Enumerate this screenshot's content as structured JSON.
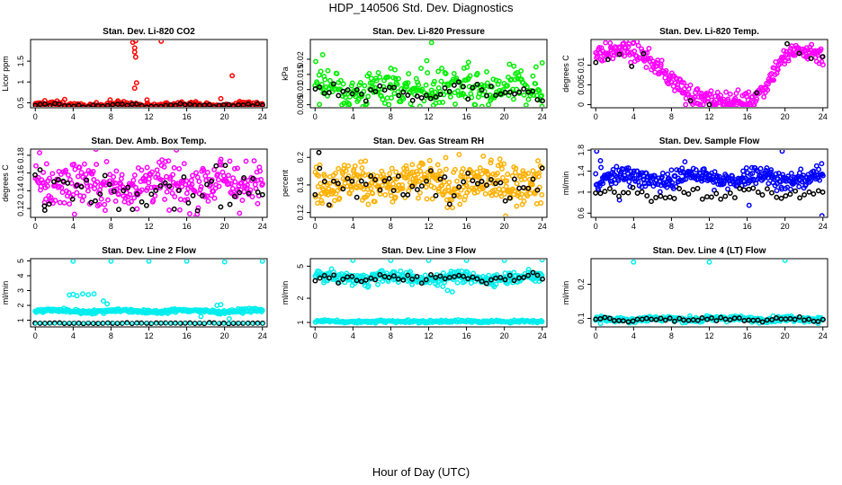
{
  "title": "HDP_140506  Std. Dev. Diagnostics",
  "xlabel": "Hour of Day (UTC)",
  "colors": {
    "black": "#000000",
    "red": "#ff0000",
    "green": "#00ee00",
    "magenta": "#ff00ff",
    "orange": "#ffb000",
    "blue": "#0000ff",
    "cyan": "#00eeee"
  },
  "chart_data": [
    {
      "type": "scatter",
      "title": "Stan. Dev. Li-820 CO2",
      "ylabel": "Licor ppm",
      "xlim": [
        -0.5,
        24.5
      ],
      "ylim": [
        0.38,
        2.02
      ],
      "xticks": [
        0,
        4,
        8,
        12,
        16,
        20,
        24
      ],
      "yticks": [
        0.5,
        1.0,
        1.5
      ],
      "series": [
        {
          "color": "red",
          "base": 0.45,
          "amp": 0.03,
          "noise": 0.03,
          "n": 240,
          "extras": [
            [
              10.3,
              1.95
            ],
            [
              10.6,
              1.99
            ],
            [
              10.5,
              1.82
            ],
            [
              10.5,
              1.72
            ],
            [
              10.6,
              1.6
            ],
            [
              10.7,
              0.98
            ],
            [
              10.5,
              0.85
            ],
            [
              13.3,
              1.98
            ],
            [
              20.8,
              1.15
            ],
            [
              1.0,
              0.55
            ],
            [
              3.1,
              0.58
            ],
            [
              7.9,
              0.57
            ],
            [
              11.8,
              0.57
            ],
            [
              19.6,
              0.6
            ]
          ]
        },
        {
          "color": "black",
          "base": 0.44,
          "amp": 0.02,
          "noise": 0.02,
          "n": 48,
          "extras": []
        }
      ]
    },
    {
      "type": "scatter",
      "title": "Stan. Dev. Li-820 Pressure",
      "ylabel": "kPa",
      "xlim": [
        -0.5,
        24.5
      ],
      "ylim": [
        0.004,
        0.0265
      ],
      "xticks": [
        0,
        4,
        8,
        12,
        16,
        20,
        24
      ],
      "yticks": [
        0.005,
        0.01,
        0.015,
        0.02
      ],
      "series": [
        {
          "color": "green",
          "base": 0.01,
          "amp": 0.0015,
          "noise": 0.003,
          "n": 300,
          "extras": [
            [
              0.8,
              0.0215
            ],
            [
              12.3,
              0.0255
            ],
            [
              11.8,
              0.0195
            ],
            [
              11.2,
              0.017
            ],
            [
              16.2,
              0.019
            ],
            [
              24.0,
              0.0188
            ],
            [
              0.6,
              0.016
            ],
            [
              8.0,
              0.017
            ],
            [
              12.5,
              0.0048
            ],
            [
              14.8,
              0.0052
            ]
          ]
        },
        {
          "color": "black",
          "base": 0.0095,
          "amp": 0.001,
          "noise": 0.0015,
          "n": 50,
          "extras": []
        }
      ]
    },
    {
      "type": "scatter",
      "title": "Stan. Dev. Li-820 Temp.",
      "ylabel": "degrees C",
      "xlim": [
        -0.5,
        24.5
      ],
      "ylim": [
        -0.0008,
        0.0165
      ],
      "xticks": [
        0,
        4,
        8,
        12,
        16,
        20,
        24
      ],
      "yticks": [
        0.0,
        0.005,
        0.01
      ],
      "series": [
        {
          "color": "magenta",
          "profile": [
            [
              0,
              0.0125
            ],
            [
              3,
              0.014
            ],
            [
              5,
              0.0125
            ],
            [
              7,
              0.0085
            ],
            [
              9,
              0.0045
            ],
            [
              10.5,
              0.002
            ],
            [
              12,
              0.001
            ],
            [
              14,
              0.001
            ],
            [
              16.5,
              0.001
            ],
            [
              18,
              0.005
            ],
            [
              19.5,
              0.011
            ],
            [
              21,
              0.0135
            ],
            [
              23,
              0.0135
            ],
            [
              24,
              0.012
            ]
          ],
          "noise": 0.0012,
          "n": 320,
          "floor": 0.0,
          "extras": [
            [
              12.5,
              0.0
            ],
            [
              13.5,
              0.0
            ],
            [
              14.5,
              0.0
            ],
            [
              15.5,
              0.0
            ],
            [
              16.0,
              0.0
            ],
            [
              11.0,
              0.0
            ],
            [
              9.5,
              0.0
            ]
          ]
        },
        {
          "color": "black",
          "profile": [
            [
              0,
              0.0115
            ],
            [
              3,
              0.013
            ],
            [
              4.5,
              0.0125
            ],
            [
              19.5,
              0.013
            ],
            [
              20,
              0.0145
            ],
            [
              22,
              0.013
            ],
            [
              24,
              0.0125
            ]
          ],
          "noise": 0.0015,
          "n": 20,
          "xmask": [
            [
              0,
              5.2
            ],
            [
              19.2,
              24.2
            ]
          ],
          "extras": [
            [
              12.0,
              0.0
            ],
            [
              10.0,
              0.001
            ],
            [
              17.0,
              0.003
            ]
          ]
        }
      ]
    },
    {
      "type": "scatter",
      "title": "Stan. Dev. Amb. Box Temp.",
      "ylabel": "degrees C",
      "xlim": [
        -0.5,
        24.5
      ],
      "ylim": [
        0.11,
        0.187
      ],
      "xticks": [
        0,
        4,
        8,
        12,
        16,
        20,
        24
      ],
      "yticks": [
        0.12,
        0.14,
        0.16,
        0.18
      ],
      "series": [
        {
          "color": "magenta",
          "base": 0.148,
          "amp": 0.004,
          "noise": 0.014,
          "n": 320,
          "extras": []
        },
        {
          "color": "black",
          "base": 0.145,
          "amp": 0.004,
          "noise": 0.012,
          "n": 50,
          "extras": [
            [
              1.0,
              0.118
            ]
          ]
        }
      ]
    },
    {
      "type": "scatter",
      "title": "Stan. Dev. Gas Stream RH",
      "ylabel": "percent",
      "xlim": [
        -0.5,
        24.5
      ],
      "ylim": [
        0.113,
        0.212
      ],
      "xticks": [
        0,
        4,
        8,
        12,
        16,
        20,
        24
      ],
      "yticks": [
        0.12,
        0.16,
        0.2
      ],
      "series": [
        {
          "color": "orange",
          "base": 0.163,
          "amp": 0.004,
          "noise": 0.015,
          "n": 380,
          "extras": []
        },
        {
          "color": "black",
          "base": 0.16,
          "amp": 0.004,
          "noise": 0.012,
          "n": 50,
          "extras": [
            [
              0.4,
              0.207
            ]
          ]
        }
      ]
    },
    {
      "type": "scatter",
      "title": "Stan. Dev. Sample Flow",
      "ylabel": "ml/min",
      "xlim": [
        -0.5,
        24.5
      ],
      "ylim": [
        0.52,
        1.82
      ],
      "xticks": [
        0,
        4,
        8,
        12,
        16,
        20,
        24
      ],
      "yticks": [
        0.6,
        1.0,
        1.4,
        1.8
      ],
      "series": [
        {
          "color": "blue",
          "base": 1.27,
          "amp": 0.08,
          "noise": 0.09,
          "n": 340,
          "extras": [
            [
              0.1,
              1.78
            ],
            [
              19.7,
              1.78
            ],
            [
              16.2,
              0.75
            ],
            [
              2.5,
              0.85
            ],
            [
              23.9,
              0.55
            ],
            [
              0.5,
              1.6
            ]
          ]
        },
        {
          "color": "black",
          "base": 0.98,
          "amp": 0.05,
          "noise": 0.06,
          "n": 50,
          "extras": []
        }
      ]
    },
    {
      "type": "scatter",
      "title": "Stan. Dev. Line 2 Flow",
      "ylabel": "ml/min",
      "xlim": [
        -0.5,
        24.5
      ],
      "ylim": [
        0.55,
        5.15
      ],
      "xticks": [
        0,
        4,
        8,
        12,
        16,
        20,
        24
      ],
      "yticks": [
        1,
        2,
        3,
        4,
        5
      ],
      "series": [
        {
          "color": "cyan",
          "base": 1.62,
          "amp": 0.06,
          "noise": 0.06,
          "n": 320,
          "extras": [
            [
              4.0,
              4.98
            ],
            [
              8.0,
              4.98
            ],
            [
              12.0,
              4.98
            ],
            [
              16.0,
              4.98
            ],
            [
              20.0,
              4.93
            ],
            [
              24.0,
              4.98
            ],
            [
              3.6,
              2.7
            ],
            [
              4.0,
              2.75
            ],
            [
              4.4,
              2.65
            ],
            [
              5.0,
              2.78
            ],
            [
              5.6,
              2.72
            ],
            [
              6.2,
              2.78
            ],
            [
              7.2,
              2.3
            ],
            [
              7.6,
              2.1
            ],
            [
              19.2,
              2.0
            ],
            [
              19.6,
              2.05
            ],
            [
              20.5,
              1.1
            ],
            [
              17.5,
              1.25
            ]
          ]
        },
        {
          "color": "black",
          "base": 0.8,
          "amp": 0.0,
          "noise": 0.015,
          "n": 48,
          "extras": []
        },
        {
          "color": "cyan",
          "base": 0.8,
          "amp": 0.0,
          "noise": 0.01,
          "n": 48,
          "small": true,
          "extras": []
        }
      ]
    },
    {
      "type": "scatter",
      "title": "Stan. Dev. Line 3 Flow",
      "ylabel": "ml/min",
      "xlim": [
        -0.5,
        24.5
      ],
      "ylim": [
        0.88,
        6.2
      ],
      "log": true,
      "xticks": [
        0,
        4,
        8,
        12,
        16,
        20,
        24
      ],
      "yticks": [
        1,
        2,
        5
      ],
      "series": [
        {
          "color": "cyan",
          "base": 3.6,
          "amp": 0.2,
          "noise": 0.3,
          "n": 320,
          "extras": [
            [
              4.0,
              5.9
            ],
            [
              8.0,
              5.9
            ],
            [
              12.0,
              5.9
            ],
            [
              16.0,
              5.9
            ],
            [
              20.0,
              5.9
            ],
            [
              24.0,
              6.0
            ],
            [
              13.5,
              2.8
            ],
            [
              14.0,
              2.5
            ],
            [
              14.5,
              2.4
            ]
          ]
        },
        {
          "color": "black",
          "base": 3.6,
          "amp": 0.15,
          "noise": 0.25,
          "n": 50,
          "extras": []
        },
        {
          "color": "cyan",
          "base": 1.03,
          "amp": 0.01,
          "noise": 0.02,
          "n": 220,
          "extras": []
        }
      ]
    },
    {
      "type": "scatter",
      "title": "Stan. Dev. Line 4 (LT) Flow",
      "ylabel": "ml/min",
      "xlim": [
        -0.5,
        24.5
      ],
      "ylim": [
        0.075,
        0.275
      ],
      "xticks": [
        0,
        4,
        8,
        12,
        16,
        20,
        24
      ],
      "yticks": [
        0.1,
        0.2
      ],
      "series": [
        {
          "color": "cyan",
          "base": 0.098,
          "amp": 0.002,
          "noise": 0.004,
          "n": 320,
          "extras": [
            [
              4.0,
              0.265
            ],
            [
              12.0,
              0.265
            ],
            [
              20.0,
              0.27
            ],
            [
              0.5,
              0.085
            ],
            [
              23.5,
              0.085
            ]
          ]
        },
        {
          "color": "black",
          "base": 0.097,
          "amp": 0.002,
          "noise": 0.003,
          "n": 50,
          "extras": []
        }
      ]
    }
  ]
}
